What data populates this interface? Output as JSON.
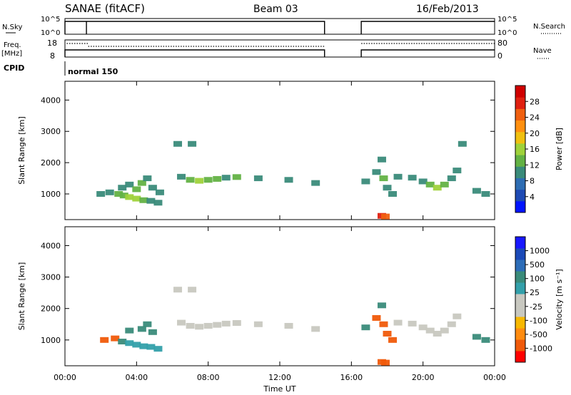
{
  "header": {
    "station": "SANAE (fitACF)",
    "beam": "Beam 03",
    "date": "16/Feb/2013"
  },
  "strip_panels": {
    "nsky": {
      "label": "N.Sky",
      "ticks": [
        "10^5",
        "10^0"
      ]
    },
    "nsearch": {
      "label": "N.Search",
      "ticks": [
        "10^5",
        "10^0"
      ]
    },
    "freq": {
      "label_line1": "Freq.",
      "label_line2": "[MHz]",
      "ticks": [
        "18",
        "8"
      ]
    },
    "nave": {
      "label": "Nave",
      "ticks": [
        "80",
        "0"
      ]
    },
    "cpid": {
      "label": "CPID",
      "value": "normal 150"
    },
    "data_gap_hours": [
      14.5,
      16.55
    ],
    "nsky_drop_hour": 1.2
  },
  "colors": {
    "power": [
      "#0014ff",
      "#1e4ab4",
      "#2e6db3",
      "#3a8b7a",
      "#63b244",
      "#9fd23a",
      "#f0c010",
      "#ff9010",
      "#f06010",
      "#e02010",
      "#d00000"
    ],
    "velocity": [
      "#ff0000",
      "#f05a0a",
      "#ff8c10",
      "#f7b800",
      "#c8c8c0",
      "#c8c8c0",
      "#33a0aa",
      "#3a8b7a",
      "#2d6db8",
      "#1b4ab8",
      "#1818ff"
    ]
  },
  "chart_data": [
    {
      "type": "heatmap",
      "name": "power-panel",
      "xlabel": "",
      "ylabel": "Slant Range [km]",
      "xlim": [
        0,
        24
      ],
      "ylim": [
        180,
        4600
      ],
      "yticks": [
        "1000",
        "2000",
        "3000",
        "4000"
      ],
      "colorbar": {
        "label": "Power [dB]",
        "ticks": [
          "4",
          "8",
          "12",
          "16",
          "20",
          "24",
          "28"
        ],
        "range": [
          0,
          30
        ]
      },
      "cells": [
        [
          2.0,
          1000,
          9
        ],
        [
          2.5,
          1050,
          10
        ],
        [
          3.0,
          1000,
          11
        ],
        [
          3.3,
          950,
          12
        ],
        [
          3.6,
          900,
          14
        ],
        [
          4.0,
          850,
          16
        ],
        [
          4.4,
          800,
          13
        ],
        [
          4.8,
          780,
          10
        ],
        [
          5.2,
          720,
          8
        ],
        [
          3.2,
          1200,
          9
        ],
        [
          3.6,
          1300,
          10
        ],
        [
          4.0,
          1150,
          11
        ],
        [
          4.3,
          1350,
          12
        ],
        [
          4.6,
          1500,
          10
        ],
        [
          4.9,
          1200,
          9
        ],
        [
          5.3,
          1050,
          8
        ],
        [
          6.5,
          1550,
          9
        ],
        [
          7.0,
          1450,
          11
        ],
        [
          7.5,
          1420,
          15
        ],
        [
          8.0,
          1450,
          12
        ],
        [
          8.5,
          1480,
          11
        ],
        [
          9.0,
          1520,
          10
        ],
        [
          9.6,
          1540,
          12
        ],
        [
          10.8,
          1500,
          8
        ],
        [
          12.5,
          1450,
          8
        ],
        [
          14.0,
          1350,
          8
        ],
        [
          16.8,
          1400,
          8
        ],
        [
          17.4,
          1700,
          9
        ],
        [
          17.7,
          2100,
          9
        ],
        [
          17.8,
          1500,
          11
        ],
        [
          18.0,
          1200,
          10
        ],
        [
          18.3,
          1000,
          9
        ],
        [
          18.6,
          1550,
          9
        ],
        [
          19.4,
          1520,
          10
        ],
        [
          20.0,
          1400,
          9
        ],
        [
          20.4,
          1300,
          12
        ],
        [
          20.8,
          1200,
          15
        ],
        [
          21.2,
          1300,
          12
        ],
        [
          21.6,
          1500,
          10
        ],
        [
          21.9,
          1750,
          9
        ],
        [
          23.0,
          1100,
          8
        ],
        [
          23.5,
          1000,
          8
        ],
        [
          17.7,
          300,
          26
        ],
        [
          17.9,
          280,
          24
        ],
        [
          6.3,
          2600,
          8
        ],
        [
          7.1,
          2600,
          9
        ],
        [
          22.2,
          2600,
          8
        ]
      ]
    },
    {
      "type": "heatmap",
      "name": "velocity-panel",
      "xlabel": "Time UT",
      "ylabel": "Slant Range [km]",
      "xlim": [
        0,
        24
      ],
      "ylim": [
        180,
        4600
      ],
      "xticks": [
        "00:00",
        "04:00",
        "08:00",
        "12:00",
        "16:00",
        "20:00",
        "00:00"
      ],
      "yticks": [
        "1000",
        "2000",
        "3000",
        "4000"
      ],
      "colorbar": {
        "label": "Velocity [m s⁻¹]",
        "ticks": [
          "1000",
          "500",
          "100",
          "25",
          "-25",
          "-100",
          "-500",
          "-1000"
        ]
      },
      "cells": [
        [
          2.2,
          1000,
          -350
        ],
        [
          2.8,
          1050,
          -300
        ],
        [
          3.2,
          950,
          80
        ],
        [
          3.6,
          900,
          60
        ],
        [
          4.0,
          850,
          40
        ],
        [
          4.4,
          800,
          50
        ],
        [
          4.8,
          780,
          60
        ],
        [
          5.2,
          720,
          40
        ],
        [
          3.6,
          1300,
          150
        ],
        [
          4.3,
          1350,
          200
        ],
        [
          4.6,
          1500,
          180
        ],
        [
          4.9,
          1250,
          160
        ],
        [
          6.5,
          1550,
          0
        ],
        [
          7.0,
          1450,
          5
        ],
        [
          7.5,
          1420,
          0
        ],
        [
          8.0,
          1450,
          -5
        ],
        [
          8.5,
          1480,
          0
        ],
        [
          9.0,
          1520,
          0
        ],
        [
          9.6,
          1540,
          5
        ],
        [
          10.8,
          1500,
          0
        ],
        [
          12.5,
          1450,
          0
        ],
        [
          14.0,
          1350,
          0
        ],
        [
          16.8,
          1400,
          200
        ],
        [
          17.4,
          1700,
          -300
        ],
        [
          17.7,
          2100,
          120
        ],
        [
          17.8,
          1500,
          -400
        ],
        [
          18.0,
          1200,
          -500
        ],
        [
          18.3,
          1000,
          -300
        ],
        [
          18.6,
          1550,
          0
        ],
        [
          19.4,
          1520,
          5
        ],
        [
          20.0,
          1400,
          0
        ],
        [
          20.4,
          1300,
          -5
        ],
        [
          20.8,
          1200,
          0
        ],
        [
          21.2,
          1300,
          0
        ],
        [
          21.6,
          1500,
          5
        ],
        [
          21.9,
          1750,
          0
        ],
        [
          23.0,
          1100,
          200
        ],
        [
          23.5,
          1000,
          150
        ],
        [
          17.7,
          300,
          -400
        ],
        [
          17.9,
          280,
          -350
        ],
        [
          6.3,
          2600,
          0
        ],
        [
          7.1,
          2600,
          5
        ]
      ]
    }
  ]
}
